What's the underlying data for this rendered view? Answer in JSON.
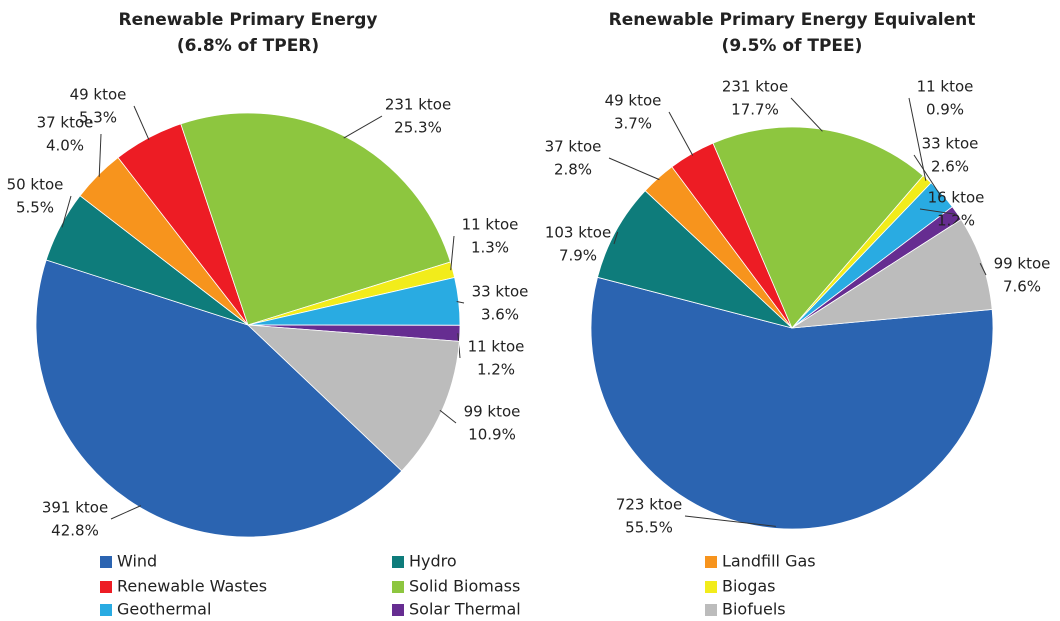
{
  "chart_data": [
    {
      "type": "pie",
      "title": "Renewable Primary Energy",
      "subtitle": "(6.8% of TPER)",
      "categories": [
        "Wind",
        "Hydro",
        "Landfill Gas",
        "Renewable Wastes",
        "Solid Biomass",
        "Biogas",
        "Geothermal",
        "Solar Thermal",
        "Biofuels"
      ],
      "values": [
        391,
        50,
        37,
        49,
        231,
        11,
        33,
        11,
        99
      ],
      "value_labels": [
        "391 ktoe",
        "50 ktoe",
        "37 ktoe",
        "49 ktoe",
        "231 ktoe",
        "11 ktoe",
        "33 ktoe",
        "11 ktoe",
        "99 ktoe"
      ],
      "percent_labels": [
        "42.8%",
        "5.5%",
        "4.0%",
        "5.3%",
        "25.3%",
        "1.3%",
        "3.6%",
        "1.2%",
        "10.9%"
      ],
      "colors": [
        "#2b64b1",
        "#0e7c7b",
        "#f7941d",
        "#ed1c24",
        "#8dc63f",
        "#f2ec1b",
        "#29abe2",
        "#662d91",
        "#bcbcbc"
      ]
    },
    {
      "type": "pie",
      "title": "Renewable Primary Energy Equivalent",
      "subtitle": "(9.5% of TPEE)",
      "categories": [
        "Wind",
        "Hydro",
        "Landfill Gas",
        "Renewable Wastes",
        "Solid Biomass",
        "Biogas",
        "Geothermal",
        "Solar Thermal",
        "Biofuels"
      ],
      "values": [
        723,
        103,
        37,
        49,
        231,
        11,
        33,
        16,
        99
      ],
      "value_labels": [
        "723 ktoe",
        "103 ktoe",
        "37 ktoe",
        "49 ktoe",
        "231 ktoe",
        "11 ktoe",
        "33 ktoe",
        "16 ktoe",
        "99 ktoe"
      ],
      "percent_labels": [
        "55.5%",
        "7.9%",
        "2.8%",
        "3.7%",
        "17.7%",
        "0.9%",
        "2.6%",
        "1.2%",
        "7.6%"
      ],
      "colors": [
        "#2b64b1",
        "#0e7c7b",
        "#f7941d",
        "#ed1c24",
        "#8dc63f",
        "#f2ec1b",
        "#29abe2",
        "#662d91",
        "#bcbcbc"
      ]
    }
  ]
}
